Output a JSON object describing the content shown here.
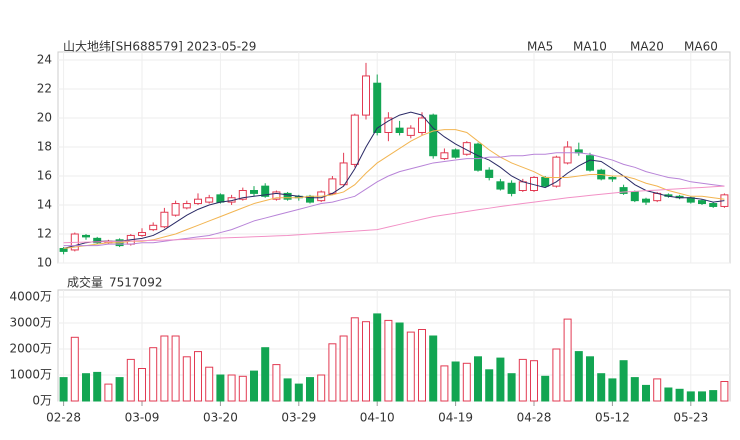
{
  "chart_data": [
    {
      "type": "candlestick",
      "title": "山大地纬[SH688579] 2023-05-29",
      "categories": [
        "02-28",
        null,
        null,
        null,
        null,
        null,
        null,
        "03-09",
        null,
        null,
        null,
        null,
        null,
        null,
        "03-20",
        null,
        null,
        null,
        null,
        null,
        null,
        "03-29",
        null,
        null,
        null,
        null,
        null,
        null,
        "04-10",
        null,
        null,
        null,
        null,
        null,
        null,
        "04-19",
        null,
        null,
        null,
        null,
        null,
        null,
        "04-28",
        null,
        null,
        null,
        null,
        null,
        null,
        "05-12",
        null,
        null,
        null,
        null,
        null,
        null,
        "05-23",
        null,
        null,
        null
      ],
      "open": [
        11.0,
        10.9,
        11.9,
        11.7,
        11.4,
        11.6,
        11.3,
        11.9,
        12.3,
        12.5,
        13.3,
        13.8,
        14.1,
        14.2,
        14.7,
        14.2,
        14.4,
        15.0,
        15.3,
        14.4,
        14.8,
        14.6,
        14.6,
        14.3,
        14.8,
        15.4,
        16.8,
        20.2,
        22.4,
        19.0,
        19.3,
        18.8,
        19.0,
        20.2,
        17.2,
        17.8,
        17.5,
        18.2,
        16.4,
        15.6,
        15.5,
        15.0,
        15.0,
        15.9,
        15.3,
        16.9,
        17.8,
        17.4,
        16.4,
        15.9,
        15.2,
        14.9,
        14.4,
        14.3,
        14.7,
        14.6,
        14.5,
        14.3,
        14.1,
        13.9
      ],
      "close": [
        10.8,
        12.0,
        11.8,
        11.4,
        11.5,
        11.2,
        11.9,
        12.1,
        12.6,
        13.5,
        14.1,
        14.1,
        14.4,
        14.5,
        14.2,
        14.5,
        15.0,
        14.8,
        14.6,
        14.9,
        14.4,
        14.5,
        14.2,
        14.9,
        15.8,
        16.9,
        20.2,
        22.9,
        19.0,
        20.0,
        19.0,
        19.3,
        20.0,
        17.4,
        17.6,
        17.3,
        18.3,
        16.4,
        15.9,
        15.1,
        14.8,
        15.6,
        15.9,
        15.3,
        17.3,
        18.0,
        17.6,
        16.4,
        15.8,
        15.8,
        14.8,
        14.3,
        14.2,
        14.8,
        14.6,
        14.5,
        14.2,
        14.1,
        13.9,
        14.7
      ],
      "high": [
        11.1,
        12.1,
        12.0,
        11.8,
        11.6,
        11.7,
        12.0,
        12.4,
        12.8,
        13.8,
        14.3,
        14.3,
        14.8,
        14.7,
        14.8,
        14.7,
        15.2,
        15.3,
        15.5,
        15.0,
        14.9,
        14.7,
        14.7,
        15.0,
        16.0,
        17.6,
        20.3,
        23.8,
        23.0,
        20.4,
        19.8,
        19.5,
        20.4,
        20.3,
        17.9,
        17.9,
        18.4,
        18.3,
        16.6,
        15.8,
        15.7,
        15.8,
        16.0,
        16.0,
        17.4,
        18.4,
        18.3,
        17.6,
        16.5,
        16.0,
        15.4,
        15.0,
        14.5,
        14.9,
        14.8,
        14.7,
        14.6,
        14.4,
        14.2,
        14.8
      ],
      "low": [
        10.6,
        10.8,
        11.6,
        11.3,
        11.3,
        11.1,
        11.2,
        11.8,
        12.2,
        12.4,
        13.2,
        13.7,
        14.0,
        14.1,
        14.1,
        14.0,
        14.3,
        14.6,
        14.5,
        14.3,
        14.3,
        14.3,
        14.1,
        14.2,
        14.7,
        15.3,
        16.6,
        19.9,
        18.8,
        18.4,
        18.8,
        18.6,
        18.8,
        17.2,
        17.1,
        17.2,
        17.4,
        16.3,
        15.7,
        15.0,
        14.6,
        14.9,
        14.9,
        15.2,
        15.2,
        16.8,
        17.4,
        16.3,
        15.7,
        15.6,
        14.7,
        14.2,
        14.0,
        14.2,
        14.5,
        14.4,
        14.1,
        14.0,
        13.8,
        13.8
      ],
      "up_color": "#e23a52",
      "down_color": "#12a552",
      "series": [
        {
          "name": "MA5",
          "color": "#2a2a66",
          "values": [
            11.0,
            11.2,
            11.4,
            11.5,
            11.5,
            11.5,
            11.6,
            11.7,
            11.9,
            12.3,
            12.8,
            13.3,
            13.7,
            14.0,
            14.2,
            14.3,
            14.5,
            14.6,
            14.7,
            14.8,
            14.7,
            14.6,
            14.5,
            14.5,
            14.8,
            15.3,
            16.5,
            18.0,
            19.3,
            19.8,
            20.2,
            20.4,
            20.2,
            19.3,
            18.7,
            18.2,
            17.8,
            17.4,
            17.1,
            16.6,
            16.0,
            15.6,
            15.4,
            15.2,
            15.6,
            16.2,
            16.7,
            17.1,
            17.0,
            16.5,
            16.0,
            15.4,
            15.0,
            14.8,
            14.6,
            14.5,
            14.5,
            14.4,
            14.2,
            14.3
          ]
        },
        {
          "name": "MA10",
          "color": "#f2b552",
          "values": [
            11.0,
            11.1,
            11.2,
            11.3,
            11.4,
            11.4,
            11.5,
            11.5,
            11.6,
            11.8,
            12.0,
            12.3,
            12.6,
            12.9,
            13.2,
            13.5,
            13.8,
            14.1,
            14.3,
            14.5,
            14.5,
            14.5,
            14.6,
            14.6,
            14.7,
            14.9,
            15.4,
            16.2,
            16.9,
            17.4,
            17.9,
            18.4,
            18.8,
            19.1,
            19.2,
            19.2,
            19.0,
            18.4,
            17.8,
            17.3,
            16.9,
            16.6,
            16.3,
            15.9,
            15.9,
            15.9,
            16.0,
            16.1,
            16.1,
            16.0,
            16.0,
            15.8,
            15.5,
            15.3,
            15.0,
            14.8,
            14.6,
            14.6,
            14.5,
            14.4
          ]
        },
        {
          "name": "MA20",
          "color": "#b884d8",
          "values": [
            11.2,
            11.2,
            11.2,
            11.2,
            11.3,
            11.3,
            11.3,
            11.4,
            11.4,
            11.5,
            11.6,
            11.7,
            11.8,
            11.9,
            12.1,
            12.3,
            12.6,
            12.9,
            13.1,
            13.3,
            13.5,
            13.7,
            13.9,
            14.1,
            14.2,
            14.4,
            14.6,
            15.1,
            15.6,
            16.0,
            16.3,
            16.5,
            16.7,
            16.9,
            17.0,
            17.1,
            17.2,
            17.2,
            17.3,
            17.3,
            17.4,
            17.4,
            17.5,
            17.5,
            17.6,
            17.6,
            17.6,
            17.5,
            17.3,
            17.1,
            16.8,
            16.6,
            16.3,
            16.1,
            15.9,
            15.8,
            15.6,
            15.5,
            15.4,
            15.3
          ]
        },
        {
          "name": "MA60",
          "color": "#f291c6",
          "values": [
            11.4,
            11.42,
            11.44,
            11.46,
            11.48,
            11.5,
            11.52,
            11.54,
            11.56,
            11.58,
            11.6,
            11.63,
            11.66,
            11.69,
            11.72,
            11.75,
            11.78,
            11.81,
            11.84,
            11.87,
            11.9,
            11.95,
            12.0,
            12.05,
            12.1,
            12.15,
            12.2,
            12.25,
            12.3,
            12.48,
            12.66,
            12.84,
            13.02,
            13.2,
            13.32,
            13.43,
            13.55,
            13.67,
            13.78,
            13.9,
            14.0,
            14.1,
            14.2,
            14.3,
            14.4,
            14.5,
            14.58,
            14.66,
            14.74,
            14.82,
            14.9,
            14.94,
            14.99,
            15.03,
            15.08,
            15.12,
            15.17,
            15.21,
            15.26,
            15.3
          ]
        }
      ],
      "ylim": [
        10,
        24
      ],
      "yticks": [
        10,
        12,
        14,
        16,
        18,
        20,
        22,
        24
      ],
      "grid": true
    },
    {
      "type": "bar",
      "title": "成交量",
      "latest": 7517092,
      "values": [
        900,
        2450,
        1050,
        1100,
        650,
        900,
        1600,
        1250,
        2050,
        2500,
        2500,
        1700,
        1900,
        1300,
        1000,
        1000,
        950,
        1150,
        2050,
        1400,
        850,
        650,
        900,
        1000,
        2200,
        2500,
        3200,
        3050,
        3350,
        3100,
        3000,
        2650,
        2750,
        2500,
        1350,
        1500,
        1450,
        1700,
        1200,
        1650,
        1050,
        1600,
        1550,
        950,
        2000,
        3150,
        1900,
        1700,
        1050,
        850,
        1550,
        900,
        600,
        850,
        500,
        450,
        350,
        350,
        400,
        750
      ],
      "ylim": [
        0,
        4000
      ],
      "yticks": [
        {
          "value": 0,
          "label": "0万"
        },
        {
          "value": 1000,
          "label": "1000万"
        },
        {
          "value": 2000,
          "label": "2000万"
        },
        {
          "value": 3000,
          "label": "3000万"
        },
        {
          "value": 4000,
          "label": "4000万"
        }
      ],
      "grid": true
    }
  ]
}
